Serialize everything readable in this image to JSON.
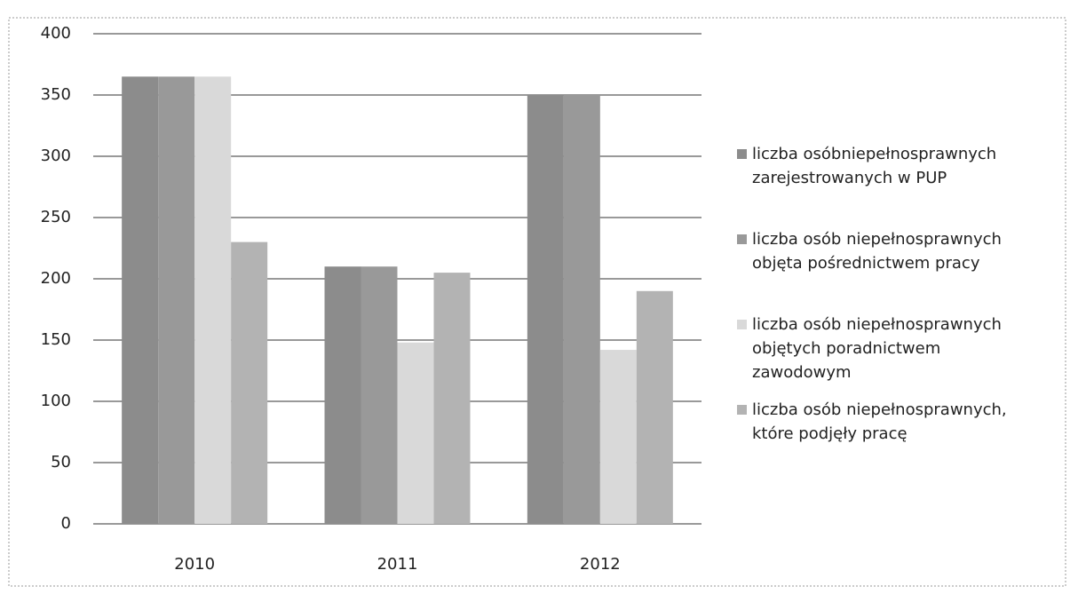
{
  "chart_data": {
    "type": "bar",
    "categories": [
      "2010",
      "2011",
      "2012"
    ],
    "series": [
      {
        "name": "liczba osóbniepełnosprawnych zarejestrowanych w PUP",
        "color": "#8c8c8c",
        "values": [
          365,
          210,
          350
        ]
      },
      {
        "name": "liczba osób niepełnosprawnych objęta pośrednictwem pracy",
        "color": "#999999",
        "values": [
          365,
          210,
          350
        ]
      },
      {
        "name": "liczba osób niepełnosprawnych objętych poradnictwem zawodowym",
        "color": "#d9d9d9",
        "values": [
          365,
          148,
          142
        ]
      },
      {
        "name": "liczba osób niepełnosprawnych, które podjęły pracę",
        "color": "#b3b3b3",
        "values": [
          230,
          205,
          190
        ]
      }
    ],
    "ylim": [
      0,
      400
    ],
    "yticks": [
      0,
      50,
      100,
      150,
      200,
      250,
      300,
      350,
      400
    ],
    "grid": true
  }
}
